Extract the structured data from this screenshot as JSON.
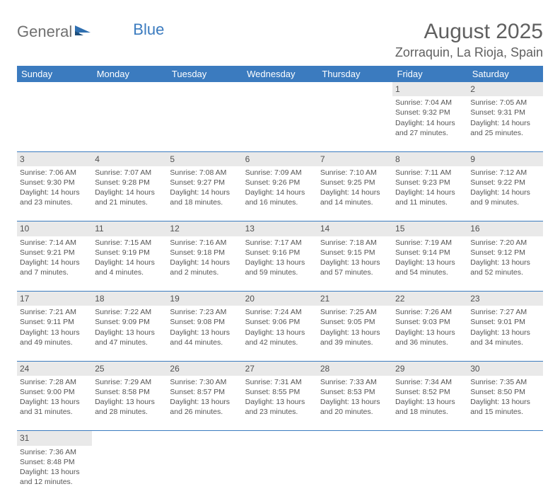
{
  "logo": {
    "word1": "General",
    "word2": "Blue"
  },
  "title": {
    "month_year": "August 2025",
    "location": "Zorraquin, La Rioja, Spain"
  },
  "colors": {
    "header_bg": "#3b7bbf",
    "header_text": "#ffffff",
    "daynum_bg": "#e9e9e9",
    "cell_border": "#3b7bbf",
    "body_text": "#555555",
    "logo_gray": "#707070",
    "logo_blue": "#3b7bbf"
  },
  "typography": {
    "title_fontsize": 30,
    "location_fontsize": 18,
    "header_fontsize": 13,
    "cell_fontsize": 10.5,
    "daynum_fontsize": 12
  },
  "days_of_week": [
    "Sunday",
    "Monday",
    "Tuesday",
    "Wednesday",
    "Thursday",
    "Friday",
    "Saturday"
  ],
  "weeks": [
    [
      null,
      null,
      null,
      null,
      null,
      {
        "n": "1",
        "sr": "Sunrise: 7:04 AM",
        "ss": "Sunset: 9:32 PM",
        "d1": "Daylight: 14 hours",
        "d2": "and 27 minutes."
      },
      {
        "n": "2",
        "sr": "Sunrise: 7:05 AM",
        "ss": "Sunset: 9:31 PM",
        "d1": "Daylight: 14 hours",
        "d2": "and 25 minutes."
      }
    ],
    [
      {
        "n": "3",
        "sr": "Sunrise: 7:06 AM",
        "ss": "Sunset: 9:30 PM",
        "d1": "Daylight: 14 hours",
        "d2": "and 23 minutes."
      },
      {
        "n": "4",
        "sr": "Sunrise: 7:07 AM",
        "ss": "Sunset: 9:28 PM",
        "d1": "Daylight: 14 hours",
        "d2": "and 21 minutes."
      },
      {
        "n": "5",
        "sr": "Sunrise: 7:08 AM",
        "ss": "Sunset: 9:27 PM",
        "d1": "Daylight: 14 hours",
        "d2": "and 18 minutes."
      },
      {
        "n": "6",
        "sr": "Sunrise: 7:09 AM",
        "ss": "Sunset: 9:26 PM",
        "d1": "Daylight: 14 hours",
        "d2": "and 16 minutes."
      },
      {
        "n": "7",
        "sr": "Sunrise: 7:10 AM",
        "ss": "Sunset: 9:25 PM",
        "d1": "Daylight: 14 hours",
        "d2": "and 14 minutes."
      },
      {
        "n": "8",
        "sr": "Sunrise: 7:11 AM",
        "ss": "Sunset: 9:23 PM",
        "d1": "Daylight: 14 hours",
        "d2": "and 11 minutes."
      },
      {
        "n": "9",
        "sr": "Sunrise: 7:12 AM",
        "ss": "Sunset: 9:22 PM",
        "d1": "Daylight: 14 hours",
        "d2": "and 9 minutes."
      }
    ],
    [
      {
        "n": "10",
        "sr": "Sunrise: 7:14 AM",
        "ss": "Sunset: 9:21 PM",
        "d1": "Daylight: 14 hours",
        "d2": "and 7 minutes."
      },
      {
        "n": "11",
        "sr": "Sunrise: 7:15 AM",
        "ss": "Sunset: 9:19 PM",
        "d1": "Daylight: 14 hours",
        "d2": "and 4 minutes."
      },
      {
        "n": "12",
        "sr": "Sunrise: 7:16 AM",
        "ss": "Sunset: 9:18 PM",
        "d1": "Daylight: 14 hours",
        "d2": "and 2 minutes."
      },
      {
        "n": "13",
        "sr": "Sunrise: 7:17 AM",
        "ss": "Sunset: 9:16 PM",
        "d1": "Daylight: 13 hours",
        "d2": "and 59 minutes."
      },
      {
        "n": "14",
        "sr": "Sunrise: 7:18 AM",
        "ss": "Sunset: 9:15 PM",
        "d1": "Daylight: 13 hours",
        "d2": "and 57 minutes."
      },
      {
        "n": "15",
        "sr": "Sunrise: 7:19 AM",
        "ss": "Sunset: 9:14 PM",
        "d1": "Daylight: 13 hours",
        "d2": "and 54 minutes."
      },
      {
        "n": "16",
        "sr": "Sunrise: 7:20 AM",
        "ss": "Sunset: 9:12 PM",
        "d1": "Daylight: 13 hours",
        "d2": "and 52 minutes."
      }
    ],
    [
      {
        "n": "17",
        "sr": "Sunrise: 7:21 AM",
        "ss": "Sunset: 9:11 PM",
        "d1": "Daylight: 13 hours",
        "d2": "and 49 minutes."
      },
      {
        "n": "18",
        "sr": "Sunrise: 7:22 AM",
        "ss": "Sunset: 9:09 PM",
        "d1": "Daylight: 13 hours",
        "d2": "and 47 minutes."
      },
      {
        "n": "19",
        "sr": "Sunrise: 7:23 AM",
        "ss": "Sunset: 9:08 PM",
        "d1": "Daylight: 13 hours",
        "d2": "and 44 minutes."
      },
      {
        "n": "20",
        "sr": "Sunrise: 7:24 AM",
        "ss": "Sunset: 9:06 PM",
        "d1": "Daylight: 13 hours",
        "d2": "and 42 minutes."
      },
      {
        "n": "21",
        "sr": "Sunrise: 7:25 AM",
        "ss": "Sunset: 9:05 PM",
        "d1": "Daylight: 13 hours",
        "d2": "and 39 minutes."
      },
      {
        "n": "22",
        "sr": "Sunrise: 7:26 AM",
        "ss": "Sunset: 9:03 PM",
        "d1": "Daylight: 13 hours",
        "d2": "and 36 minutes."
      },
      {
        "n": "23",
        "sr": "Sunrise: 7:27 AM",
        "ss": "Sunset: 9:01 PM",
        "d1": "Daylight: 13 hours",
        "d2": "and 34 minutes."
      }
    ],
    [
      {
        "n": "24",
        "sr": "Sunrise: 7:28 AM",
        "ss": "Sunset: 9:00 PM",
        "d1": "Daylight: 13 hours",
        "d2": "and 31 minutes."
      },
      {
        "n": "25",
        "sr": "Sunrise: 7:29 AM",
        "ss": "Sunset: 8:58 PM",
        "d1": "Daylight: 13 hours",
        "d2": "and 28 minutes."
      },
      {
        "n": "26",
        "sr": "Sunrise: 7:30 AM",
        "ss": "Sunset: 8:57 PM",
        "d1": "Daylight: 13 hours",
        "d2": "and 26 minutes."
      },
      {
        "n": "27",
        "sr": "Sunrise: 7:31 AM",
        "ss": "Sunset: 8:55 PM",
        "d1": "Daylight: 13 hours",
        "d2": "and 23 minutes."
      },
      {
        "n": "28",
        "sr": "Sunrise: 7:33 AM",
        "ss": "Sunset: 8:53 PM",
        "d1": "Daylight: 13 hours",
        "d2": "and 20 minutes."
      },
      {
        "n": "29",
        "sr": "Sunrise: 7:34 AM",
        "ss": "Sunset: 8:52 PM",
        "d1": "Daylight: 13 hours",
        "d2": "and 18 minutes."
      },
      {
        "n": "30",
        "sr": "Sunrise: 7:35 AM",
        "ss": "Sunset: 8:50 PM",
        "d1": "Daylight: 13 hours",
        "d2": "and 15 minutes."
      }
    ],
    [
      {
        "n": "31",
        "sr": "Sunrise: 7:36 AM",
        "ss": "Sunset: 8:48 PM",
        "d1": "Daylight: 13 hours",
        "d2": "and 12 minutes."
      },
      null,
      null,
      null,
      null,
      null,
      null
    ]
  ]
}
